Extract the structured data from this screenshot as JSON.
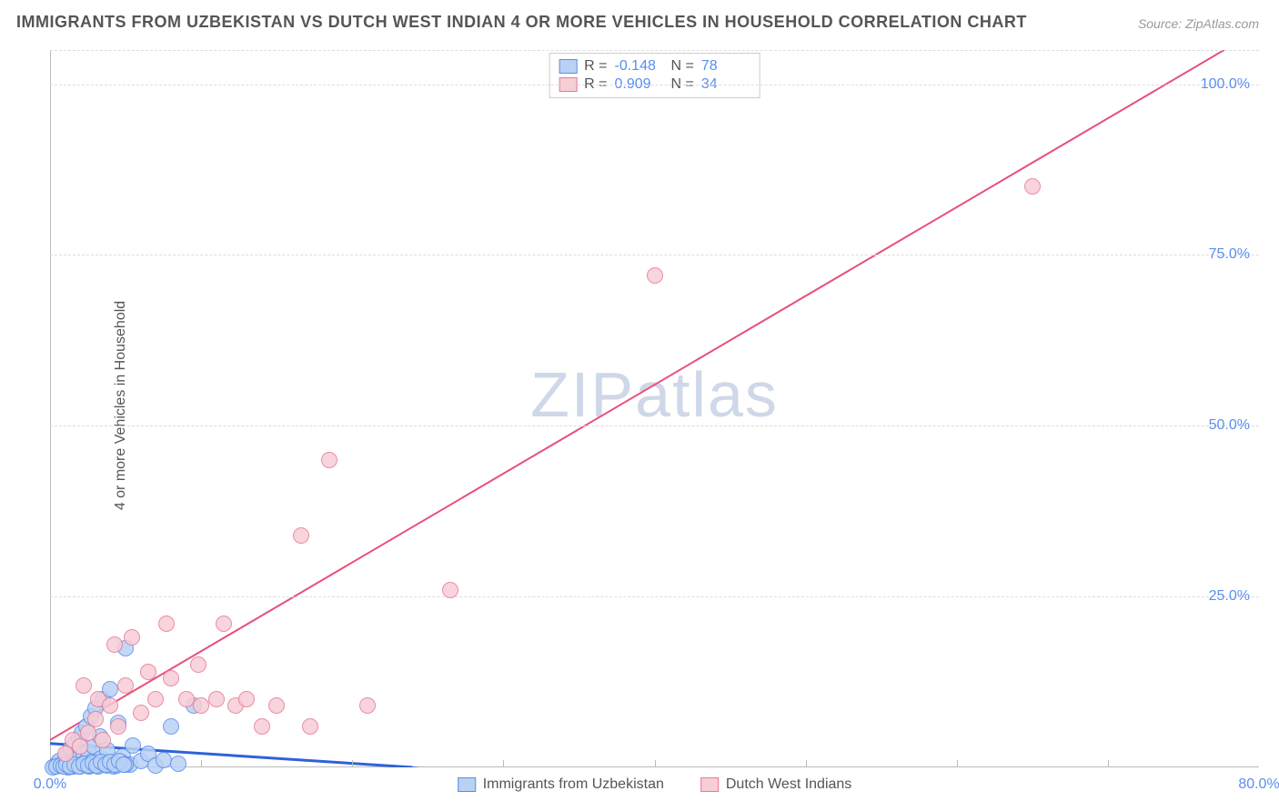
{
  "title": "IMMIGRANTS FROM UZBEKISTAN VS DUTCH WEST INDIAN 4 OR MORE VEHICLES IN HOUSEHOLD CORRELATION CHART",
  "source": "Source: ZipAtlas.com",
  "ylabel": "4 or more Vehicles in Household",
  "watermark": "ZIPatlas",
  "chart": {
    "type": "scatter",
    "xlim": [
      0,
      80
    ],
    "ylim": [
      0,
      105
    ],
    "xticks": [
      {
        "v": 0,
        "l": "0.0%"
      },
      {
        "v": 80,
        "l": "80.0%"
      }
    ],
    "yticks": [
      {
        "v": 25,
        "l": "25.0%"
      },
      {
        "v": 50,
        "l": "50.0%"
      },
      {
        "v": 75,
        "l": "75.0%"
      },
      {
        "v": 100,
        "l": "100.0%"
      }
    ],
    "xgrid_minor": [
      10,
      20,
      30,
      40,
      50,
      60,
      70
    ],
    "background": "#ffffff",
    "grid_color": "#dddddd",
    "axis_color": "#bbbbbb",
    "marker_radius": 9,
    "marker_stroke": 1.5,
    "label_fontsize": 16,
    "title_fontsize": 18,
    "tick_color": "#5b8def"
  },
  "series": [
    {
      "name": "Immigrants from Uzbekistan",
      "fill": "#b9d2f3",
      "stroke": "#5b8def",
      "R": "-0.148",
      "N": "78",
      "trend": {
        "x1": 0,
        "y1": 3.5,
        "x2": 24,
        "y2": 0,
        "dash_ext_x": 44,
        "stroke": "#2e62d9",
        "width": 3
      },
      "points": [
        [
          0.3,
          0.2
        ],
        [
          0.5,
          0.5
        ],
        [
          0.6,
          1.0
        ],
        [
          0.8,
          0.3
        ],
        [
          1.0,
          1.5
        ],
        [
          1.1,
          0.4
        ],
        [
          1.2,
          2.0
        ],
        [
          1.3,
          0.6
        ],
        [
          1.4,
          2.8
        ],
        [
          1.5,
          0.2
        ],
        [
          1.6,
          3.5
        ],
        [
          1.7,
          0.9
        ],
        [
          1.8,
          1.2
        ],
        [
          1.9,
          4.2
        ],
        [
          2.0,
          0.4
        ],
        [
          2.1,
          5.0
        ],
        [
          2.2,
          1.8
        ],
        [
          2.3,
          0.7
        ],
        [
          2.4,
          6.0
        ],
        [
          2.5,
          2.2
        ],
        [
          2.6,
          0.3
        ],
        [
          2.7,
          7.5
        ],
        [
          2.8,
          1.0
        ],
        [
          2.9,
          3.0
        ],
        [
          3.0,
          8.7
        ],
        [
          3.2,
          0.5
        ],
        [
          3.3,
          4.5
        ],
        [
          3.4,
          1.3
        ],
        [
          3.5,
          10.0
        ],
        [
          3.7,
          0.8
        ],
        [
          3.8,
          2.5
        ],
        [
          4.0,
          11.5
        ],
        [
          4.2,
          0.2
        ],
        [
          4.5,
          6.5
        ],
        [
          4.8,
          1.6
        ],
        [
          5.0,
          17.5
        ],
        [
          5.3,
          0.4
        ],
        [
          5.5,
          3.2
        ],
        [
          6.0,
          0.9
        ],
        [
          6.5,
          2.0
        ],
        [
          7.0,
          0.3
        ],
        [
          7.5,
          1.1
        ],
        [
          8.0,
          6.0
        ],
        [
          8.5,
          0.5
        ],
        [
          9.5,
          9.0
        ],
        [
          1.0,
          0.1
        ],
        [
          1.2,
          0.05
        ],
        [
          1.5,
          0.15
        ],
        [
          1.8,
          0.25
        ],
        [
          2.0,
          0.1
        ],
        [
          2.3,
          0.35
        ],
        [
          2.6,
          0.15
        ],
        [
          2.9,
          0.45
        ],
        [
          3.2,
          0.2
        ],
        [
          3.5,
          0.55
        ],
        [
          3.8,
          0.25
        ],
        [
          4.1,
          0.65
        ],
        [
          4.4,
          0.3
        ],
        [
          4.7,
          0.75
        ],
        [
          5.0,
          0.35
        ],
        [
          0.2,
          0.05
        ],
        [
          0.4,
          0.15
        ],
        [
          0.7,
          0.25
        ],
        [
          0.9,
          0.1
        ],
        [
          1.1,
          0.35
        ],
        [
          1.3,
          0.15
        ],
        [
          1.6,
          0.45
        ],
        [
          1.9,
          0.2
        ],
        [
          2.2,
          0.55
        ],
        [
          2.5,
          0.25
        ],
        [
          2.8,
          0.65
        ],
        [
          3.1,
          0.3
        ],
        [
          3.4,
          0.75
        ],
        [
          3.7,
          0.35
        ],
        [
          4.0,
          0.85
        ],
        [
          4.3,
          0.4
        ],
        [
          4.6,
          0.95
        ],
        [
          4.9,
          0.45
        ]
      ]
    },
    {
      "name": "Dutch West Indians",
      "fill": "#f7cdd6",
      "stroke": "#e87a95",
      "R": "0.909",
      "N": "34",
      "trend": {
        "x1": 0,
        "y1": 4,
        "x2": 80,
        "y2": 108,
        "stroke": "#e85079",
        "width": 2
      },
      "points": [
        [
          1.0,
          2.0
        ],
        [
          1.5,
          4.0
        ],
        [
          2.0,
          3.0
        ],
        [
          2.2,
          12.0
        ],
        [
          2.5,
          5.0
        ],
        [
          3.0,
          7.0
        ],
        [
          3.2,
          10.0
        ],
        [
          3.5,
          4.0
        ],
        [
          4.0,
          9.0
        ],
        [
          4.3,
          18.0
        ],
        [
          4.5,
          6.0
        ],
        [
          5.0,
          12.0
        ],
        [
          5.4,
          19.0
        ],
        [
          6.0,
          8.0
        ],
        [
          6.5,
          14.0
        ],
        [
          7.0,
          10.0
        ],
        [
          7.7,
          21.0
        ],
        [
          8.0,
          13.0
        ],
        [
          9.8,
          15.0
        ],
        [
          9.0,
          10.0
        ],
        [
          10.0,
          9.0
        ],
        [
          11.0,
          10.0
        ],
        [
          11.5,
          21.0
        ],
        [
          12.3,
          9.0
        ],
        [
          13.0,
          10.0
        ],
        [
          14.0,
          6.0
        ],
        [
          15.0,
          9.0
        ],
        [
          16.6,
          34.0
        ],
        [
          17.2,
          6.0
        ],
        [
          18.5,
          45.0
        ],
        [
          21.0,
          9.0
        ],
        [
          26.5,
          26.0
        ],
        [
          40.0,
          72.0
        ],
        [
          65.0,
          85.0
        ]
      ]
    }
  ],
  "legend_bottom": [
    {
      "label": "Immigrants from Uzbekistan",
      "fill": "#b9d2f3",
      "stroke": "#5b8def"
    },
    {
      "label": "Dutch West Indians",
      "fill": "#f7cdd6",
      "stroke": "#e87a95"
    }
  ]
}
